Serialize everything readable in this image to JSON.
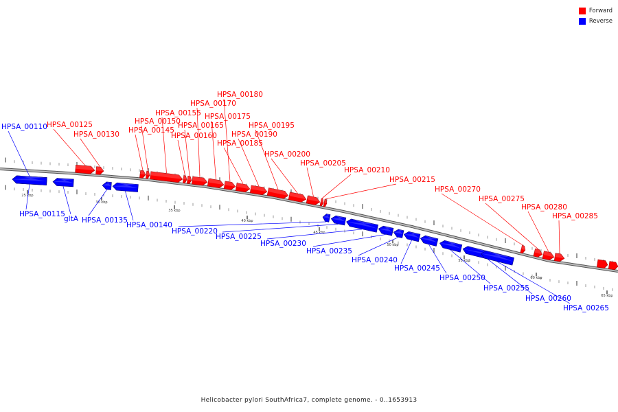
{
  "legend": [
    {
      "label": "Forward",
      "color": "#ff0000"
    },
    {
      "label": "Reverse",
      "color": "#0000ff"
    }
  ],
  "caption": "Helicobacter pylori SouthAfrica7, complete genome. - 0..1653913",
  "colors": {
    "forward": "#ff0000",
    "reverse": "#0000ff",
    "backbone": "#888888"
  },
  "scale_labels": [
    "25 kbp",
    "30 kbp",
    "35 kbp",
    "40 kbp",
    "45 kbp",
    "50 kbp",
    "55 kbp",
    "60 kbp",
    "65 kbp"
  ],
  "genes": [
    {
      "name": "HPSA_00110",
      "strand": "reverse"
    },
    {
      "name": "HPSA_00115",
      "strand": "reverse"
    },
    {
      "name": "gltA",
      "strand": "reverse"
    },
    {
      "name": "HPSA_00125",
      "strand": "forward"
    },
    {
      "name": "HPSA_00130",
      "strand": "forward"
    },
    {
      "name": "HPSA_00135",
      "strand": "reverse"
    },
    {
      "name": "HPSA_00140",
      "strand": "reverse"
    },
    {
      "name": "HPSA_00145",
      "strand": "forward"
    },
    {
      "name": "HPSA_00150",
      "strand": "forward"
    },
    {
      "name": "HPSA_00155",
      "strand": "forward"
    },
    {
      "name": "HPSA_00160",
      "strand": "forward"
    },
    {
      "name": "HPSA_00165",
      "strand": "forward"
    },
    {
      "name": "HPSA_00170",
      "strand": "forward"
    },
    {
      "name": "HPSA_00175",
      "strand": "forward"
    },
    {
      "name": "HPSA_00180",
      "strand": "forward"
    },
    {
      "name": "HPSA_00185",
      "strand": "forward"
    },
    {
      "name": "HPSA_00190",
      "strand": "forward"
    },
    {
      "name": "HPSA_00195",
      "strand": "forward"
    },
    {
      "name": "HPSA_00200",
      "strand": "forward"
    },
    {
      "name": "HPSA_00205",
      "strand": "forward"
    },
    {
      "name": "HPSA_00210",
      "strand": "forward"
    },
    {
      "name": "HPSA_00215",
      "strand": "forward"
    },
    {
      "name": "HPSA_00220",
      "strand": "reverse"
    },
    {
      "name": "HPSA_00225",
      "strand": "reverse"
    },
    {
      "name": "HPSA_00230",
      "strand": "reverse"
    },
    {
      "name": "HPSA_00235",
      "strand": "reverse"
    },
    {
      "name": "HPSA_00240",
      "strand": "reverse"
    },
    {
      "name": "HPSA_00245",
      "strand": "reverse"
    },
    {
      "name": "HPSA_00250",
      "strand": "reverse"
    },
    {
      "name": "HPSA_00255",
      "strand": "reverse"
    },
    {
      "name": "HPSA_00260",
      "strand": "reverse"
    },
    {
      "name": "HPSA_00265",
      "strand": "reverse"
    },
    {
      "name": "HPSA_00270",
      "strand": "forward"
    },
    {
      "name": "HPSA_00275",
      "strand": "forward"
    },
    {
      "name": "HPSA_00280",
      "strand": "forward"
    },
    {
      "name": "HPSA_00285",
      "strand": "forward"
    }
  ]
}
